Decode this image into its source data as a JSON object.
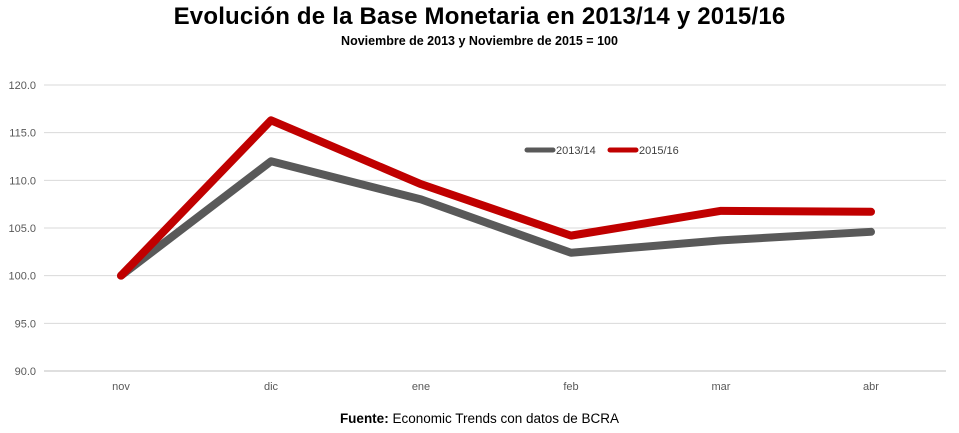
{
  "chart_data": {
    "type": "line",
    "title": "Evolución de la Base Monetaria en 2013/14 y 2015/16",
    "subtitle": "Noviembre de 2013 y Noviembre de 2015 = 100",
    "xlabel": "",
    "ylabel": "",
    "categories": [
      "nov",
      "dic",
      "ene",
      "feb",
      "mar",
      "abr"
    ],
    "ylim": [
      90.0,
      120.0
    ],
    "yticks": [
      "90.0",
      "95.0",
      "100.0",
      "105.0",
      "110.0",
      "115.0",
      "120.0"
    ],
    "grid": true,
    "legend_position": "top-center",
    "series": [
      {
        "name": "2013/14",
        "color": "#595959",
        "values": [
          100.0,
          112.0,
          108.0,
          102.4,
          103.7,
          104.6
        ]
      },
      {
        "name": "2015/16",
        "color": "#C00000",
        "values": [
          100.0,
          116.3,
          109.6,
          104.2,
          106.8,
          106.7
        ]
      }
    ]
  },
  "source": {
    "label": "Fuente:",
    "text": " Economic Trends con datos de BCRA"
  }
}
